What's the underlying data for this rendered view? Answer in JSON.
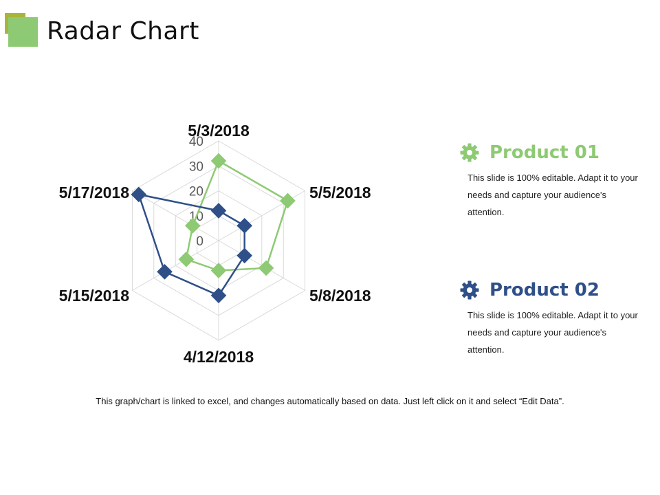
{
  "page": {
    "title": "Radar Chart",
    "footer_note": "This graph/chart is linked to excel, and changes automatically based on data. Just left click on it and select “Edit Data”."
  },
  "theme": {
    "accent_green": "#8dca73",
    "accent_blue": "#2f4f88",
    "deco_olive": "#a9b43a",
    "grid": "#d9d9d9"
  },
  "chart_data": {
    "type": "radar",
    "title": "",
    "categories": [
      "5/3/2018",
      "5/5/2018",
      "5/8/2018",
      "4/12/2018",
      "5/15/2018",
      "5/17/2018"
    ],
    "series": [
      {
        "name": "Product 01",
        "values": [
          32,
          32,
          22,
          12,
          15,
          12
        ],
        "color": "#8dca73"
      },
      {
        "name": "Product 02",
        "values": [
          12,
          12,
          12,
          22,
          25,
          37
        ],
        "color": "#2f4f88"
      }
    ],
    "axis": {
      "min": 0,
      "max": 40,
      "ticks": [
        0,
        10,
        20,
        30,
        40
      ]
    },
    "grid": true,
    "legend_position": "right"
  },
  "legend": [
    {
      "name": "Product 01",
      "icon": "gear-icon",
      "color": "#8dca73",
      "description": "This slide is 100% editable. Adapt it to your needs and capture your audience's attention."
    },
    {
      "name": "Product 02",
      "icon": "gear-icon",
      "color": "#2f4f88",
      "description": "This slide is 100% editable. Adapt it to your needs and capture your audience's attention."
    }
  ]
}
